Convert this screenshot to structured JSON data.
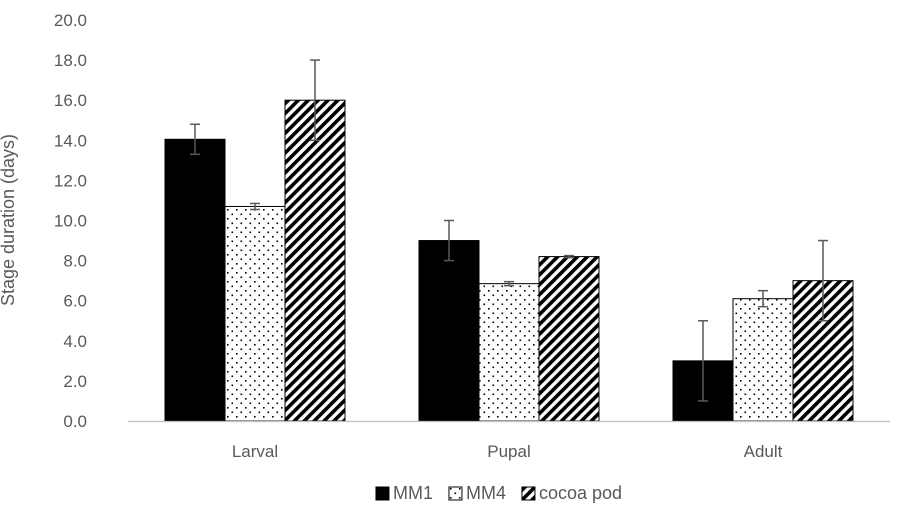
{
  "chart_data": {
    "type": "bar",
    "title": "",
    "xlabel": "",
    "ylabel": "Stage duration (days)",
    "ylim": [
      0,
      20
    ],
    "ytick_step": 2,
    "ytick_labels": [
      "0.0",
      "2.0",
      "4.0",
      "6.0",
      "8.0",
      "10.0",
      "12.0",
      "14.0",
      "16.0",
      "18.0",
      "20.0"
    ],
    "grid": false,
    "legend_position": "bottom",
    "categories": [
      "Larval",
      "Pupal",
      "Adult"
    ],
    "series": [
      {
        "name": "MM1",
        "values": [
          14.05,
          9.0,
          3.0
        ],
        "errors": [
          0.75,
          1.0,
          2.0
        ],
        "fill": "solid-black"
      },
      {
        "name": "MM4",
        "values": [
          10.7,
          6.85,
          6.1
        ],
        "errors": [
          0.15,
          0.1,
          0.4
        ],
        "fill": "dotted"
      },
      {
        "name": "cocoa pod",
        "values": [
          16.0,
          8.2,
          7.0
        ],
        "errors": [
          2.0,
          0.05,
          2.0
        ],
        "fill": "diagonal-hatch"
      }
    ],
    "colors": {
      "bar_outline": "#000000",
      "axis": "#bfbfbf",
      "text": "#595959",
      "error_bar": "#595959"
    }
  }
}
